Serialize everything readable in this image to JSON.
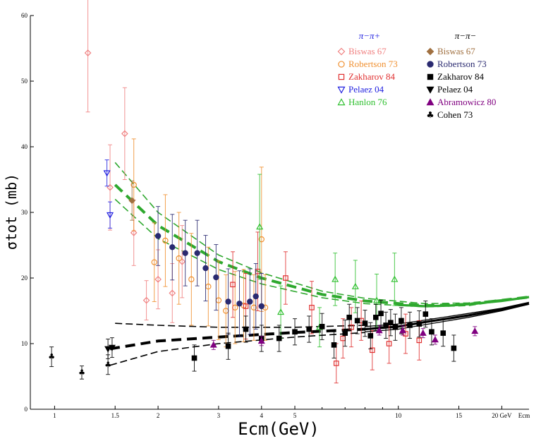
{
  "chart_data": {
    "type": "scatter",
    "xlabel": "Ecm(GeV)",
    "ylabel": "σtot (mb)",
    "x_scale": "log",
    "xlim": [
      0.85,
      24
    ],
    "ylim": [
      0,
      60
    ],
    "x_ticks": [
      {
        "v": 1,
        "label": "1"
      },
      {
        "v": 1.5,
        "label": "1.5"
      },
      {
        "v": 2,
        "label": "2"
      },
      {
        "v": 3,
        "label": "3"
      },
      {
        "v": 4,
        "label": "4"
      },
      {
        "v": 5,
        "label": "5"
      },
      {
        "v": 10,
        "label": "10"
      },
      {
        "v": 15,
        "label": "15"
      },
      {
        "v": 20,
        "label": "20 GeV"
      }
    ],
    "x_end_label": "Ecm",
    "y_ticks": [
      0,
      10,
      20,
      30,
      40,
      50,
      60
    ],
    "legend": {
      "left_title": "π−π+",
      "right_title": "π−π−",
      "left": [
        {
          "label": "Biswas 67",
          "color": "#f08080",
          "marker": "diamond-open"
        },
        {
          "label": "Robertson 73",
          "color": "#f09030",
          "marker": "circle-open"
        },
        {
          "label": "Zakharov 84",
          "color": "#e03030",
          "marker": "square-open"
        },
        {
          "label": "Pelaez 04",
          "color": "#2020e0",
          "marker": "triangle-down-open"
        },
        {
          "label": "Hanlon 76",
          "color": "#30c030",
          "marker": "triangle-up-open"
        }
      ],
      "right": [
        {
          "label": "Biswas 67",
          "color": "#a07040",
          "marker": "diamond"
        },
        {
          "label": "Robertson 73",
          "color": "#2a2a70",
          "marker": "circle"
        },
        {
          "label": "Zakharov 84",
          "color": "#000000",
          "marker": "square"
        },
        {
          "label": "Pelaez 04",
          "color": "#000000",
          "marker": "triangle-down"
        },
        {
          "label": "Abramowicz 80",
          "color": "#800080",
          "marker": "triangle-up"
        },
        {
          "label": "Cohen 73",
          "color": "#000000",
          "marker": "club"
        }
      ]
    },
    "series": [
      {
        "name": "Biswas 67",
        "group": "π−π+",
        "color": "#f08080",
        "marker": "diamond-open",
        "points": [
          [
            1.25,
            54.3,
            9
          ],
          [
            1.45,
            33.8,
            6.5
          ],
          [
            1.6,
            42,
            7
          ],
          [
            1.7,
            26.9,
            5
          ],
          [
            1.85,
            16.6,
            3
          ],
          [
            2.0,
            19.8,
            4.5
          ],
          [
            2.2,
            17.7,
            4.5
          ],
          [
            2.35,
            22.5,
            5.5
          ]
        ]
      },
      {
        "name": "Robertson 73",
        "group": "π−π+",
        "color": "#f09030",
        "marker": "circle-open",
        "points": [
          [
            1.7,
            34.2,
            7
          ],
          [
            1.95,
            22.4,
            6
          ],
          [
            2.1,
            25.7,
            7
          ],
          [
            2.3,
            23,
            7
          ],
          [
            2.5,
            19.8,
            7
          ],
          [
            2.8,
            18.7,
            6
          ],
          [
            3.0,
            16.6,
            6
          ],
          [
            3.15,
            15,
            5.5
          ],
          [
            3.35,
            15.5,
            5.5
          ],
          [
            3.55,
            15.8,
            5.5
          ],
          [
            3.8,
            15.5,
            5
          ],
          [
            4.0,
            25.9,
            11
          ],
          [
            4.1,
            15.5,
            5
          ]
        ]
      },
      {
        "name": "Zakharov 84",
        "group": "π−π+",
        "color": "#e03030",
        "marker": "square-open",
        "points": [
          [
            3.3,
            19,
            5
          ],
          [
            3.6,
            15.7,
            5
          ],
          [
            3.9,
            21,
            6
          ],
          [
            4.7,
            20,
            4
          ],
          [
            5.6,
            15.5,
            4
          ],
          [
            6.6,
            7,
            3
          ],
          [
            6.9,
            10.8,
            3
          ],
          [
            7.3,
            12.5,
            3
          ],
          [
            7.8,
            13.5,
            3
          ],
          [
            8.4,
            9,
            3
          ],
          [
            9.4,
            10,
            3
          ],
          [
            10.5,
            11.5,
            3
          ],
          [
            11.5,
            10.5,
            3
          ]
        ]
      },
      {
        "name": "Pelaez 04",
        "group": "π−π+",
        "color": "#2020e0",
        "marker": "triangle-down-open",
        "points": [
          [
            1.42,
            36,
            2
          ],
          [
            1.45,
            29.6,
            2
          ]
        ]
      },
      {
        "name": "Hanlon 76",
        "group": "π−π+",
        "color": "#30c030",
        "marker": "triangle-up-open",
        "points": [
          [
            3.95,
            27.8,
            8
          ],
          [
            4.55,
            14.8,
            4
          ],
          [
            5.9,
            12.5,
            3
          ],
          [
            6.55,
            19.8,
            4
          ],
          [
            7.5,
            18.7,
            4
          ],
          [
            8.65,
            16.6,
            4
          ],
          [
            9.75,
            19.8,
            4
          ]
        ]
      },
      {
        "name": "Biswas 67",
        "group": "π−π−",
        "color": "#a07040",
        "marker": "diamond",
        "points": [
          [
            1.68,
            31.8,
            3
          ]
        ]
      },
      {
        "name": "Robertson 73",
        "group": "π−π−",
        "color": "#2a2a70",
        "marker": "circle",
        "points": [
          [
            2.0,
            26.4,
            4.5
          ],
          [
            2.2,
            24.7,
            5
          ],
          [
            2.4,
            23.8,
            5
          ],
          [
            2.6,
            23.8,
            5
          ],
          [
            2.75,
            21.5,
            5
          ],
          [
            2.95,
            20.1,
            5
          ],
          [
            3.2,
            16.4,
            5
          ],
          [
            3.45,
            16.1,
            5
          ],
          [
            3.7,
            16.4,
            5
          ],
          [
            3.85,
            17.2,
            5
          ],
          [
            4.0,
            15.7,
            5
          ]
        ]
      },
      {
        "name": "Zakharov 84",
        "group": "π−π−",
        "color": "#000000",
        "marker": "square",
        "points": [
          [
            2.55,
            7.8,
            2
          ],
          [
            3.2,
            9.6,
            2
          ],
          [
            3.6,
            12.2,
            2
          ],
          [
            4.0,
            10.8,
            2
          ],
          [
            4.5,
            10.8,
            2
          ],
          [
            5.0,
            11.8,
            2
          ],
          [
            5.5,
            12.2,
            2
          ],
          [
            6.0,
            12.6,
            2
          ],
          [
            6.5,
            9.8,
            2
          ],
          [
            7.0,
            11.6,
            2
          ],
          [
            7.2,
            14,
            2
          ],
          [
            7.6,
            13.5,
            2
          ],
          [
            8.0,
            13.1,
            2
          ],
          [
            8.3,
            11.2,
            2
          ],
          [
            8.6,
            14,
            2
          ],
          [
            8.9,
            14.6,
            2
          ],
          [
            9.2,
            12.8,
            2
          ],
          [
            9.5,
            13.2,
            2
          ],
          [
            9.8,
            12.5,
            2
          ],
          [
            10.2,
            13.5,
            2
          ],
          [
            10.8,
            12.8,
            2
          ],
          [
            11.5,
            13,
            2
          ],
          [
            12.0,
            14.5,
            2
          ],
          [
            12.5,
            11.8,
            2
          ],
          [
            13.5,
            11.6,
            2
          ],
          [
            14.5,
            9.3,
            2
          ]
        ]
      },
      {
        "name": "Pelaez 04",
        "group": "π−π−",
        "color": "#000000",
        "marker": "triangle-down",
        "points": [
          [
            1.43,
            9.2,
            1.5
          ],
          [
            1.47,
            9.4,
            1.5
          ]
        ]
      },
      {
        "name": "Abramowicz 80",
        "group": "π−π−",
        "color": "#800080",
        "marker": "triangle-up",
        "points": [
          [
            2.9,
            9.8,
            0.7
          ],
          [
            4.0,
            10.4,
            0.7
          ],
          [
            8.8,
            12,
            0.7
          ],
          [
            10.3,
            12,
            0.7
          ],
          [
            11.8,
            11.6,
            0.7
          ],
          [
            12.8,
            10.6,
            0.7
          ],
          [
            16.7,
            11.9,
            0.7
          ]
        ]
      },
      {
        "name": "Cohen 73",
        "group": "π−π−",
        "color": "#000000",
        "marker": "club",
        "points": [
          [
            0.98,
            8,
            1.5
          ],
          [
            1.2,
            5.6,
            1
          ],
          [
            1.43,
            6.8,
            1.5
          ]
        ]
      }
    ],
    "fits": [
      {
        "group": "π−π+",
        "color": "#2ea82e",
        "style": "thick-dashed",
        "points": [
          [
            1.5,
            34.2
          ],
          [
            2,
            28
          ],
          [
            3,
            22.5
          ],
          [
            4,
            20
          ],
          [
            6,
            17.5
          ],
          [
            8,
            16.5
          ],
          [
            12,
            15.8
          ],
          [
            16,
            16
          ],
          [
            24,
            17.1
          ]
        ]
      },
      {
        "group": "π−π+",
        "color": "#2ea82e",
        "style": "thin-dashed",
        "points": [
          [
            1.5,
            37.6
          ],
          [
            2,
            30
          ],
          [
            3,
            23.5
          ],
          [
            4,
            20.8
          ],
          [
            6,
            18
          ],
          [
            8,
            16.9
          ],
          [
            12,
            16.1
          ],
          [
            16,
            16.2
          ],
          [
            24,
            17.1
          ]
        ]
      },
      {
        "group": "π−π+",
        "color": "#2ea82e",
        "style": "thin-dashed",
        "points": [
          [
            1.5,
            32
          ],
          [
            2,
            26
          ],
          [
            3,
            21.3
          ],
          [
            4,
            19.1
          ],
          [
            6,
            17
          ],
          [
            8,
            16.1
          ],
          [
            12,
            15.6
          ],
          [
            16,
            15.8
          ],
          [
            24,
            17.1
          ]
        ]
      },
      {
        "group": "π−π+",
        "color": "#2ea82e",
        "style": "solid",
        "points": [
          [
            10,
            15.9
          ],
          [
            12,
            15.7
          ],
          [
            14,
            15.8
          ],
          [
            16,
            16
          ],
          [
            20,
            16.5
          ],
          [
            24,
            17.1
          ]
        ]
      },
      {
        "group": "π−π−",
        "color": "#000000",
        "style": "thick-dashed",
        "points": [
          [
            1.45,
            9.2
          ],
          [
            2,
            10.4
          ],
          [
            3,
            11
          ],
          [
            5,
            11.7
          ],
          [
            8,
            12.2
          ]
        ]
      },
      {
        "group": "π−π−",
        "color": "#000000",
        "style": "thin-dashed",
        "points": [
          [
            1.5,
            13.1
          ],
          [
            2,
            12.8
          ],
          [
            3,
            12.5
          ],
          [
            5,
            12.5
          ],
          [
            8,
            12.8
          ]
        ]
      },
      {
        "group": "π−π−",
        "color": "#000000",
        "style": "thin-dashed",
        "points": [
          [
            1.45,
            6.7
          ],
          [
            2,
            8.8
          ],
          [
            3,
            10
          ],
          [
            5,
            11
          ],
          [
            8,
            11.7
          ]
        ]
      },
      {
        "group": "π−π−",
        "color": "#000000",
        "style": "solid",
        "points": [
          [
            8,
            12.2
          ],
          [
            10,
            12.6
          ],
          [
            12,
            13.3
          ],
          [
            16,
            14.3
          ],
          [
            20,
            15.2
          ],
          [
            24,
            16.1
          ]
        ]
      },
      {
        "group": "π−π−",
        "color": "#000000",
        "style": "thin-solid",
        "points": [
          [
            8,
            12.6
          ],
          [
            10,
            13
          ],
          [
            12,
            13.6
          ],
          [
            16,
            14.6
          ],
          [
            20,
            15.4
          ],
          [
            24,
            16.3
          ]
        ]
      },
      {
        "group": "π−π−",
        "color": "#000000",
        "style": "thin-solid",
        "points": [
          [
            8,
            11.8
          ],
          [
            10,
            12.2
          ],
          [
            12,
            12.9
          ],
          [
            16,
            14
          ],
          [
            20,
            15
          ],
          [
            24,
            16
          ]
        ]
      }
    ]
  }
}
